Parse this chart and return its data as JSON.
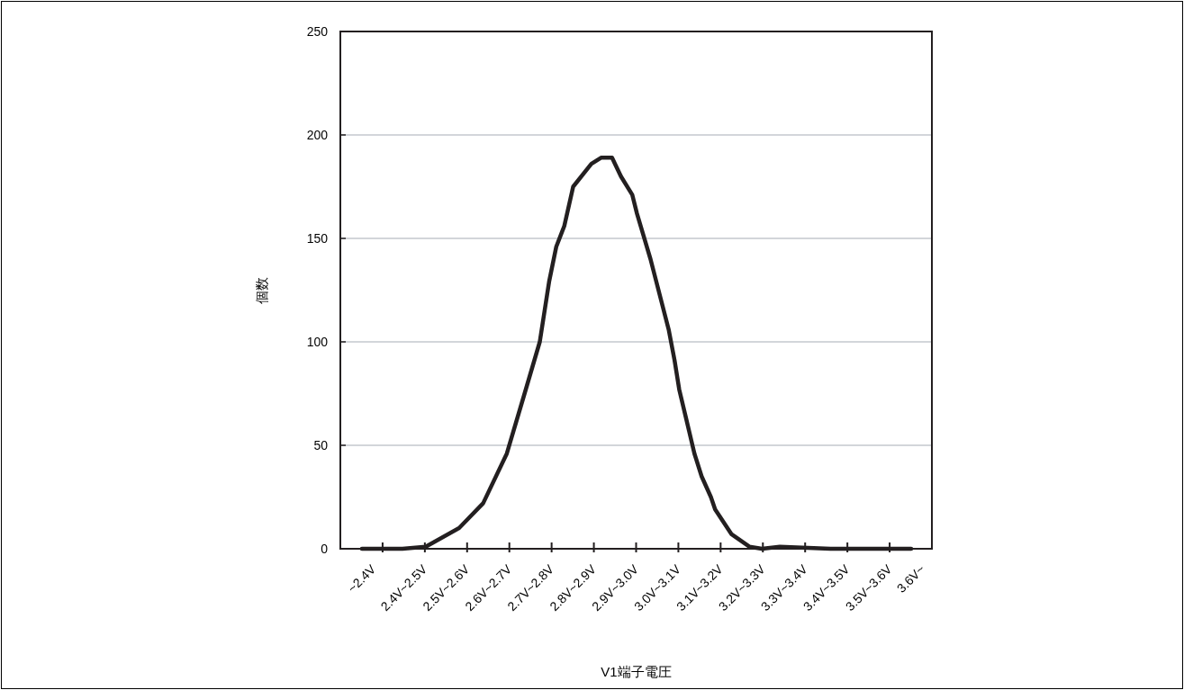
{
  "chart_data": {
    "type": "line",
    "xlabel": "V1端子電圧",
    "ylabel": "個数",
    "xlim": [
      2.3,
      3.7
    ],
    "xticks": [
      {
        "value": 2.35,
        "label": "~2.4V"
      },
      {
        "value": 2.4,
        "label": null
      },
      {
        "value": 2.45,
        "label": "2.4V~2.5V"
      },
      {
        "value": 2.5,
        "label": null
      },
      {
        "value": 2.55,
        "label": "2.5V~2.6V"
      },
      {
        "value": 2.6,
        "label": null
      },
      {
        "value": 2.65,
        "label": "2.6V~2.7V"
      },
      {
        "value": 2.7,
        "label": null
      },
      {
        "value": 2.75,
        "label": "2.7V~2.8V"
      },
      {
        "value": 2.8,
        "label": null
      },
      {
        "value": 2.85,
        "label": "2.8V~2.9V"
      },
      {
        "value": 2.9,
        "label": null
      },
      {
        "value": 2.95,
        "label": "2.9V~3.0V"
      },
      {
        "value": 3.0,
        "label": null
      },
      {
        "value": 3.05,
        "label": "3.0V~3.1V"
      },
      {
        "value": 3.1,
        "label": null
      },
      {
        "value": 3.15,
        "label": "3.1V~3.2V"
      },
      {
        "value": 3.2,
        "label": null
      },
      {
        "value": 3.25,
        "label": "3.2V~3.3V"
      },
      {
        "value": 3.3,
        "label": null
      },
      {
        "value": 3.35,
        "label": "3.3V~3.4V"
      },
      {
        "value": 3.4,
        "label": null
      },
      {
        "value": 3.45,
        "label": "3.4V~3.5V"
      },
      {
        "value": 3.5,
        "label": null
      },
      {
        "value": 3.55,
        "label": "3.5V~3.6V"
      },
      {
        "value": 3.6,
        "label": null
      },
      {
        "value": 3.65,
        "label": "3.6V~"
      }
    ],
    "ylim": [
      0,
      250
    ],
    "yticks": [
      0,
      50,
      100,
      150,
      200,
      250
    ],
    "grid": "y",
    "series": [
      {
        "color": "#231f20",
        "x": [
          2.351,
          2.447,
          2.502,
          2.581,
          2.638,
          2.694,
          2.736,
          2.772,
          2.794,
          2.811,
          2.83,
          2.851,
          2.894,
          2.917,
          2.943,
          2.964,
          2.991,
          3.002,
          3.034,
          3.077,
          3.091,
          3.102,
          3.138,
          3.155,
          3.177,
          3.187,
          3.226,
          3.268,
          3.298,
          3.34,
          3.46,
          3.651
        ],
        "values": [
          0,
          0,
          1,
          10,
          22,
          46,
          75,
          100,
          129,
          146,
          156,
          175,
          186,
          189,
          189,
          180,
          171,
          162,
          140,
          106,
          91,
          77,
          46,
          35,
          25,
          19,
          7,
          1,
          0,
          1,
          0,
          0
        ]
      }
    ]
  }
}
